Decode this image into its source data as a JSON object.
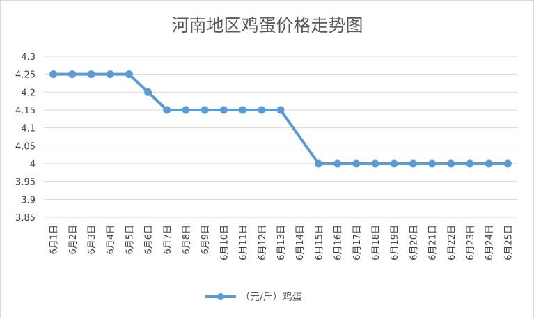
{
  "chart_data": {
    "type": "line",
    "title": "河南地区鸡蛋价格走势图",
    "xlabel": "",
    "ylabel": "",
    "ylim": [
      3.85,
      4.3
    ],
    "yticks": [
      "4.3",
      "4.25",
      "4.2",
      "4.15",
      "4.1",
      "4.05",
      "4",
      "3.95",
      "3.9",
      "3.85"
    ],
    "grid": "horizontal",
    "legend_position": "bottom",
    "line_color": "#5b9bd5",
    "categories": [
      "6月1日",
      "6月2日",
      "6月3日",
      "6月4日",
      "6月5日",
      "6月6日",
      "6月7日",
      "6月8日",
      "6月9日",
      "6月10日",
      "6月11日",
      "6月12日",
      "6月13日",
      "6月14日",
      "6月15日",
      "6月16日",
      "6月17日",
      "6月18日",
      "6月19日",
      "6月20日",
      "6月21日",
      "6月22日",
      "6月23日",
      "6月24日",
      "6月25日"
    ],
    "series": [
      {
        "name": "（元/斤）鸡蛋",
        "values": [
          4.25,
          4.25,
          4.25,
          4.25,
          4.25,
          4.2,
          4.15,
          4.15,
          4.15,
          4.15,
          4.15,
          4.15,
          4.15,
          null,
          4.0,
          4.0,
          4.0,
          4.0,
          4.0,
          4.0,
          4.0,
          4.0,
          4.0,
          4.0,
          4.0
        ]
      }
    ]
  }
}
